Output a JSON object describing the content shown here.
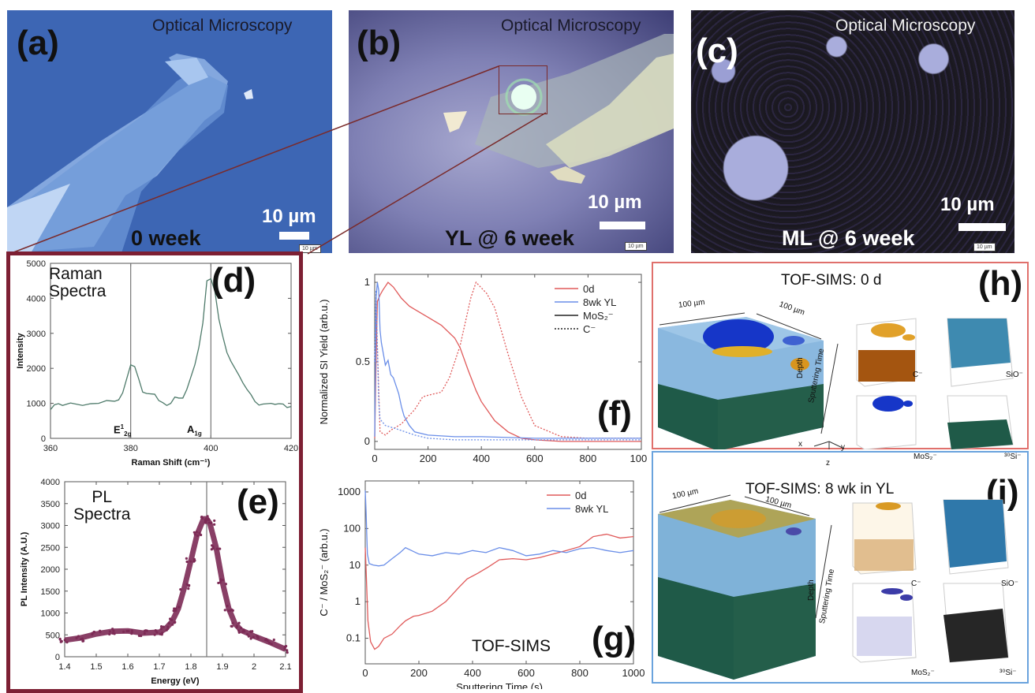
{
  "figure": {
    "panels": {
      "a": {
        "label": "(a)",
        "title": "Optical Microscopy",
        "condition": "0 week",
        "scale_bar": "10 µm",
        "scale_tag": "10 µm"
      },
      "b": {
        "label": "(b)",
        "title": "Optical Microscopy",
        "condition": "YL @ 6 week",
        "scale_bar": "10 µm",
        "scale_tag": "10 µm"
      },
      "c": {
        "label": "(c)",
        "title": "Optical Microscopy",
        "condition": "ML @ 6 week",
        "scale_bar": "10 µm",
        "scale_tag": "10 µm"
      },
      "d": {
        "label": "(d)",
        "inset_title_1": "Raman",
        "inset_title_2": "Spectra",
        "peak_1": "E",
        "peak_1_sup": "1",
        "peak_1_sub": "2g",
        "peak_2": "A",
        "peak_2_sub": "1g"
      },
      "e": {
        "label": "(e)",
        "inset_title_1": "PL",
        "inset_title_2": "Spectra"
      },
      "f": {
        "label": "(f)"
      },
      "g": {
        "label": "(g)",
        "annotation": "TOF-SIMS"
      },
      "h": {
        "label": "(h)",
        "title": "TOF-SIMS: 0 d",
        "dim_1": "100 µm",
        "dim_2": "100 µm",
        "depth": "Depth",
        "sputter": "Sputtering Time",
        "axes": {
          "x": "x",
          "y": "y",
          "z": "z"
        },
        "species": [
          "C⁻",
          "SiO⁻",
          "MoS₂⁻",
          "³⁰Si⁻"
        ]
      },
      "i": {
        "label": "(i)",
        "title": "TOF-SIMS: 8 wk in YL",
        "dim_1": "100 µm",
        "dim_2": "100 µm",
        "depth": "Depth",
        "sputter": "Sputtering Time",
        "species": [
          "C⁻",
          "SiO⁻",
          "MoS₂⁻",
          "³⁰Si⁻"
        ]
      }
    },
    "colors": {
      "frame_de": "#7d1f33",
      "frame_h": "#e0706c",
      "frame_i": "#6aa3dd",
      "raman_line": "#4e7a6a",
      "pl_points": "#7c2a55",
      "red_series": "#e05a5a",
      "blue_series": "#6a8ee8"
    }
  },
  "chart_data": [
    {
      "id": "d",
      "type": "line",
      "title": "Raman Spectra",
      "xlabel": "Raman Shift (cm⁻¹)",
      "ylabel": "Intensity",
      "xlim": [
        360,
        420
      ],
      "ylim": [
        0,
        5000
      ],
      "xticks": [
        360,
        380,
        400,
        420
      ],
      "yticks": [
        0,
        1000,
        2000,
        3000,
        4000,
        5000
      ],
      "vlines": [
        380,
        400
      ],
      "x": [
        360,
        361,
        362,
        363,
        365,
        368,
        370,
        372,
        374,
        376,
        377,
        378,
        379,
        380,
        381,
        382,
        383,
        384,
        386,
        387,
        388,
        389,
        390,
        391,
        392,
        393,
        394,
        395,
        396,
        397,
        398,
        399,
        400,
        401,
        402,
        403,
        404,
        405,
        406,
        407,
        408,
        409,
        410,
        411,
        412,
        413,
        415,
        416,
        417,
        418,
        419,
        420
      ],
      "series": [
        {
          "name": "Raman",
          "values": [
            820,
            960,
            990,
            940,
            1010,
            940,
            990,
            1000,
            1080,
            1060,
            1100,
            1300,
            1700,
            2100,
            2050,
            1700,
            1320,
            1280,
            1260,
            1080,
            1020,
            940,
            1000,
            1180,
            1150,
            1150,
            1400,
            1750,
            2100,
            2600,
            3300,
            4500,
            4560,
            4200,
            3400,
            2900,
            2450,
            2200,
            2000,
            1800,
            1580,
            1400,
            1250,
            1050,
            950,
            980,
            1000,
            970,
            990,
            980,
            880,
            910
          ]
        }
      ]
    },
    {
      "id": "e",
      "type": "scatter",
      "title": "PL Spectra",
      "xlabel": "Energy (eV)",
      "ylabel": "PL Intensity (A.U.)",
      "xlim": [
        1.4,
        2.1
      ],
      "ylim": [
        0,
        4000
      ],
      "xticks": [
        1.4,
        1.5,
        1.6,
        1.7,
        1.8,
        1.9,
        2.0,
        2.1
      ],
      "yticks": [
        0,
        500,
        1000,
        1500,
        2000,
        2500,
        3000,
        3500,
        4000
      ],
      "vlines": [
        1.85
      ],
      "x": [
        1.4,
        1.45,
        1.5,
        1.55,
        1.6,
        1.65,
        1.7,
        1.72,
        1.74,
        1.76,
        1.78,
        1.8,
        1.82,
        1.84,
        1.85,
        1.86,
        1.88,
        1.9,
        1.92,
        1.94,
        1.96,
        1.98,
        2.0,
        2.05,
        2.1
      ],
      "series": [
        {
          "name": "PL",
          "values": [
            380,
            430,
            520,
            580,
            590,
            540,
            560,
            640,
            800,
            1100,
            1600,
            2200,
            2800,
            3150,
            3150,
            3050,
            2500,
            1700,
            1100,
            750,
            600,
            540,
            470,
            330,
            170
          ]
        }
      ]
    },
    {
      "id": "f",
      "type": "line",
      "xlabel": "Sputtering Time (s)",
      "ylabel": "Normalized SI Yield (arb.u.)",
      "xlim": [
        0,
        1000
      ],
      "ylim": [
        -0.05,
        1.05
      ],
      "xticks": [
        0,
        200,
        400,
        600,
        800,
        1000
      ],
      "yticks": [
        0.0,
        0.5,
        1.0
      ],
      "legend": [
        "0d",
        "8wk YL",
        "MoS₂⁻",
        "C⁻"
      ],
      "legend_position": "top-right",
      "series": [
        {
          "name": "0d MoS₂⁻",
          "style": "solid",
          "color": "red",
          "x": [
            0,
            5,
            10,
            20,
            30,
            50,
            70,
            100,
            130,
            150,
            200,
            250,
            300,
            320,
            350,
            380,
            400,
            450,
            500,
            550,
            600,
            700,
            800,
            1000
          ],
          "values": [
            0.02,
            0.5,
            0.88,
            0.92,
            0.95,
            1.0,
            0.97,
            0.9,
            0.85,
            0.83,
            0.78,
            0.73,
            0.65,
            0.59,
            0.45,
            0.32,
            0.25,
            0.13,
            0.06,
            0.02,
            0.01,
            0.0,
            0.0,
            0.0
          ]
        },
        {
          "name": "0d C⁻",
          "style": "dotted",
          "color": "red",
          "x": [
            0,
            5,
            10,
            20,
            40,
            60,
            80,
            100,
            150,
            180,
            200,
            250,
            280,
            320,
            360,
            380,
            420,
            450,
            500,
            550,
            600,
            700,
            800,
            1000
          ],
          "values": [
            0.5,
            0.8,
            0.6,
            0.06,
            0.04,
            0.07,
            0.09,
            0.11,
            0.2,
            0.28,
            0.29,
            0.31,
            0.4,
            0.6,
            0.9,
            1.0,
            0.93,
            0.84,
            0.55,
            0.28,
            0.1,
            0.03,
            0.02,
            0.02
          ]
        },
        {
          "name": "8wk YL MoS₂⁻",
          "style": "solid",
          "color": "blue",
          "x": [
            0,
            5,
            10,
            15,
            20,
            25,
            40,
            50,
            60,
            70,
            90,
            100,
            110,
            130,
            150,
            200,
            300,
            400,
            600,
            800,
            1000
          ],
          "values": [
            0.03,
            0.9,
            1.0,
            0.95,
            0.7,
            0.62,
            0.48,
            0.51,
            0.42,
            0.4,
            0.3,
            0.22,
            0.16,
            0.1,
            0.06,
            0.04,
            0.03,
            0.03,
            0.02,
            0.02,
            0.02
          ]
        },
        {
          "name": "8wk YL C⁻",
          "style": "dotted",
          "color": "blue",
          "x": [
            0,
            5,
            10,
            15,
            20,
            40,
            80,
            150,
            200,
            300,
            400,
            600,
            800,
            1000
          ],
          "values": [
            0.5,
            0.95,
            0.6,
            0.25,
            0.14,
            0.1,
            0.08,
            0.04,
            0.02,
            0.01,
            0.01,
            0.01,
            0.01,
            0.01
          ]
        }
      ]
    },
    {
      "id": "g",
      "type": "line",
      "xlabel": "Sputtering Time (s)",
      "ylabel": "C⁻ / MoS₂⁻ (arb.u.)",
      "yscale": "log",
      "xlim": [
        0,
        1000
      ],
      "ylim": [
        0.02,
        2000
      ],
      "xticks": [
        0,
        200,
        400,
        600,
        800,
        1000
      ],
      "yticks": [
        0.1,
        1,
        10,
        100,
        1000
      ],
      "legend": [
        "0d",
        "8wk YL"
      ],
      "legend_position": "top-right",
      "annotation": "TOF-SIMS",
      "series": [
        {
          "name": "0d",
          "color": "red",
          "x": [
            0,
            3,
            10,
            20,
            35,
            50,
            70,
            100,
            130,
            150,
            180,
            200,
            250,
            300,
            350,
            380,
            420,
            460,
            500,
            550,
            600,
            650,
            700,
            750,
            800,
            850,
            900,
            950,
            1000
          ],
          "values": [
            30,
            8,
            0.3,
            0.08,
            0.05,
            0.06,
            0.1,
            0.13,
            0.22,
            0.3,
            0.4,
            0.42,
            0.55,
            1.0,
            2.5,
            4.2,
            6,
            9,
            14,
            15,
            14,
            16,
            20,
            25,
            32,
            60,
            70,
            55,
            60
          ]
        },
        {
          "name": "8wk YL",
          "color": "blue",
          "x": [
            0,
            3,
            8,
            15,
            30,
            50,
            70,
            100,
            130,
            150,
            200,
            250,
            300,
            350,
            400,
            450,
            500,
            550,
            600,
            650,
            700,
            750,
            800,
            850,
            900,
            950,
            1000
          ],
          "values": [
            1100,
            300,
            20,
            11,
            10,
            9.5,
            10,
            15,
            22,
            30,
            20,
            18,
            22,
            20,
            25,
            22,
            30,
            25,
            18,
            20,
            25,
            22,
            28,
            30,
            25,
            22,
            25
          ]
        }
      ]
    }
  ]
}
